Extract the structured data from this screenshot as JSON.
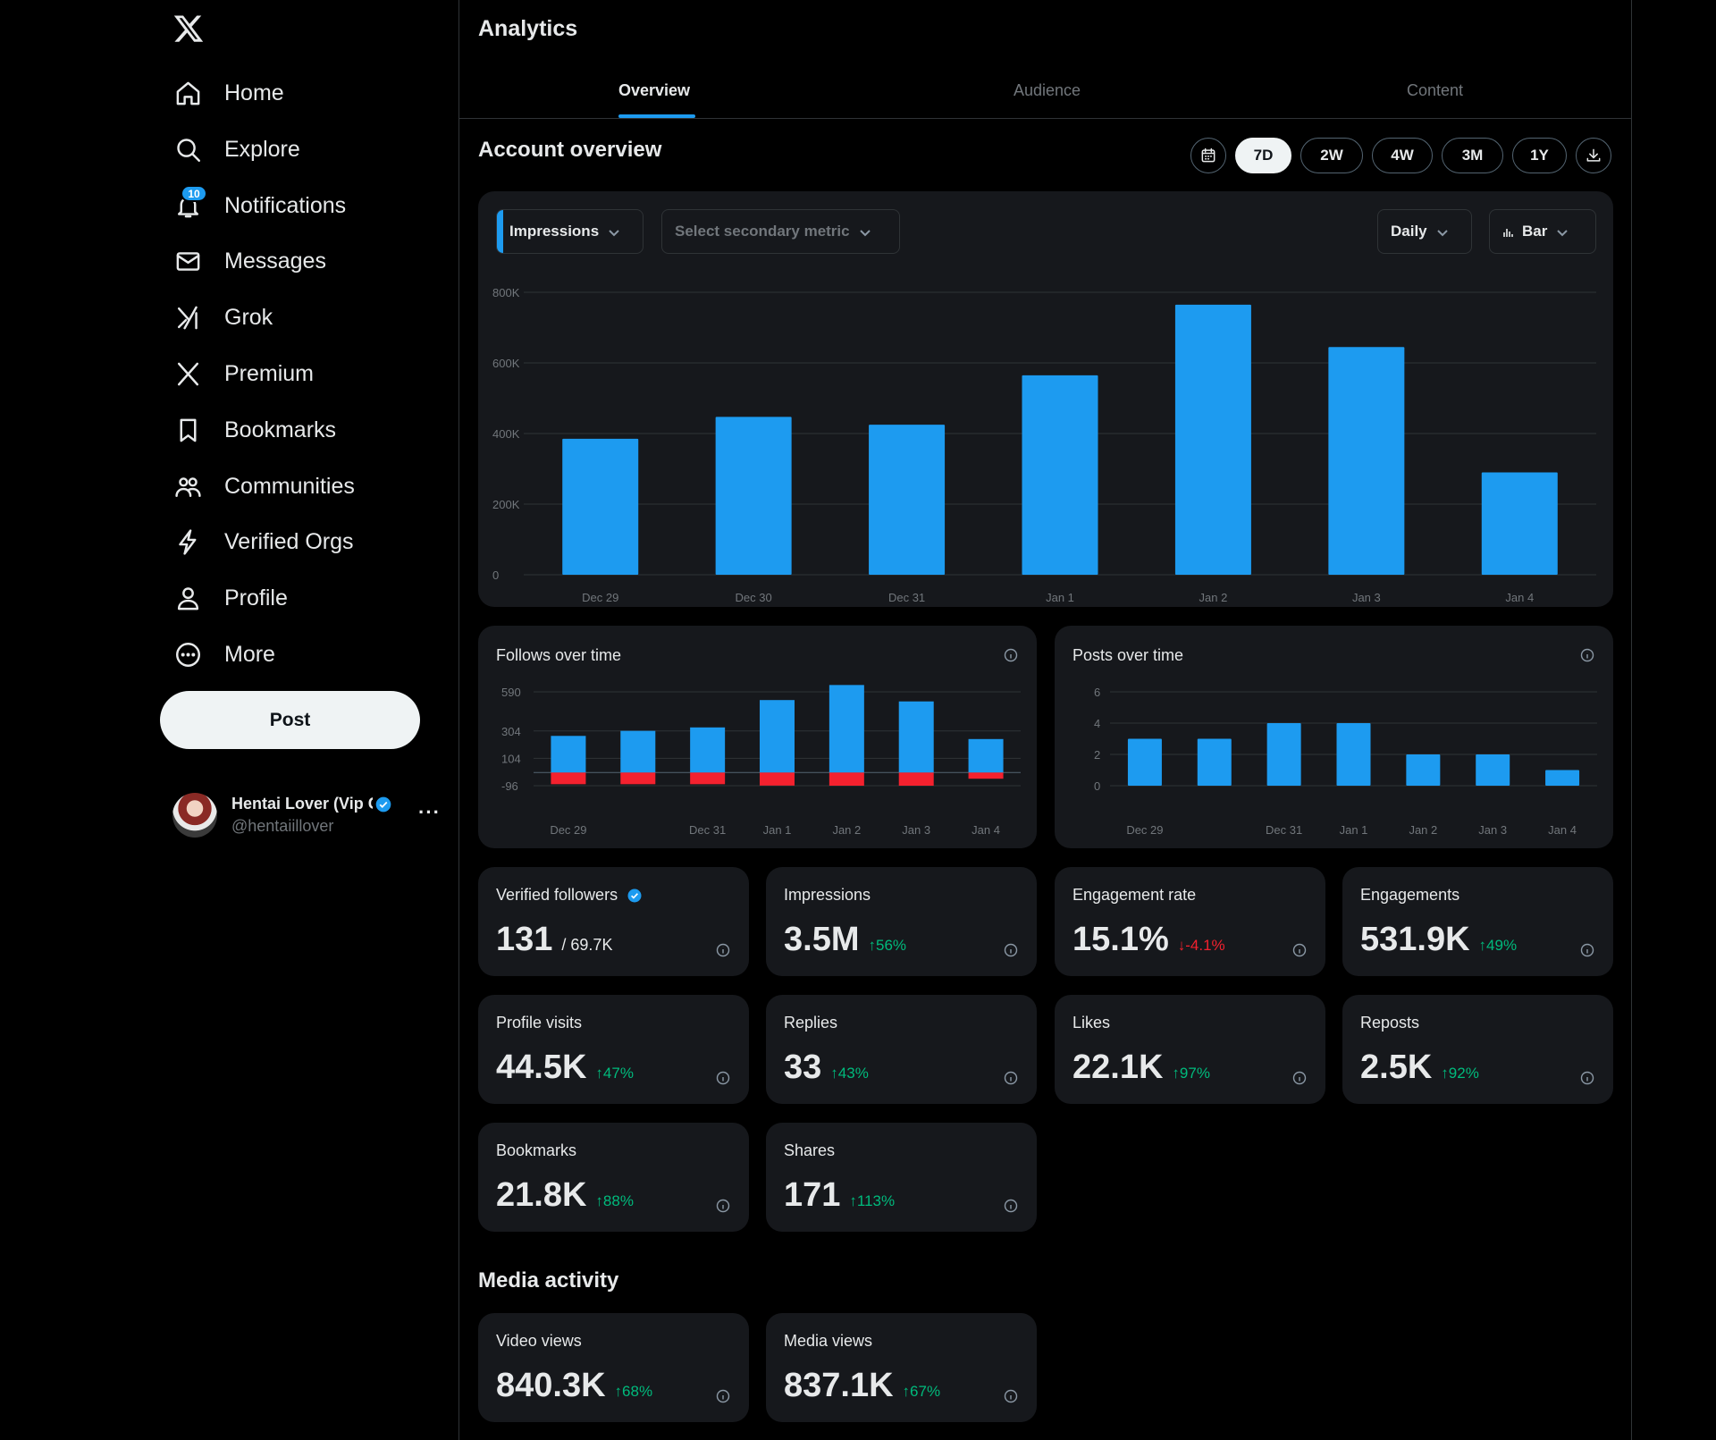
{
  "sidebar": {
    "nav": [
      {
        "label": "Home",
        "icon": "home-icon"
      },
      {
        "label": "Explore",
        "icon": "search-icon"
      },
      {
        "label": "Notifications",
        "icon": "bell-icon"
      },
      {
        "label": "Messages",
        "icon": "envelope-icon"
      },
      {
        "label": "Grok",
        "icon": "grok-icon"
      },
      {
        "label": "Premium",
        "icon": "x-icon"
      },
      {
        "label": "Bookmarks",
        "icon": "bookmark-icon"
      },
      {
        "label": "Communities",
        "icon": "people-icon"
      },
      {
        "label": "Verified Orgs",
        "icon": "lightning-icon"
      },
      {
        "label": "Profile",
        "icon": "person-icon"
      },
      {
        "label": "More",
        "icon": "more-circle-icon"
      }
    ],
    "notification_count": "10",
    "post_label": "Post",
    "account": {
      "name": "Hentai Lover (Vip Content)",
      "handle": "@hentaiillover",
      "more": "···"
    }
  },
  "main": {
    "title": "Analytics",
    "tabs": [
      {
        "label": "Overview",
        "active": true
      },
      {
        "label": "Audience",
        "active": false
      },
      {
        "label": "Content",
        "active": false
      }
    ],
    "account_overview_title": "Account overview",
    "ranges": [
      "7D",
      "2W",
      "4W",
      "3M",
      "1Y"
    ],
    "active_range": "7D",
    "primary_metric": "Impressions",
    "secondary_metric_placeholder": "Select secondary metric",
    "interval": "Daily",
    "chart_type_label": "Bar",
    "follows_title": "Follows over time",
    "posts_title": "Posts over time",
    "metrics": [
      {
        "label": "Verified followers",
        "value": "131",
        "sub": "/ 69.7K",
        "change": "",
        "dir": "",
        "verified": true
      },
      {
        "label": "Impressions",
        "value": "3.5M",
        "change": "56%",
        "dir": "up"
      },
      {
        "label": "Engagement rate",
        "value": "15.1%",
        "change": "-4.1%",
        "dir": "down"
      },
      {
        "label": "Engagements",
        "value": "531.9K",
        "change": "49%",
        "dir": "up"
      },
      {
        "label": "Profile visits",
        "value": "44.5K",
        "change": "47%",
        "dir": "up"
      },
      {
        "label": "Replies",
        "value": "33",
        "change": "43%",
        "dir": "up"
      },
      {
        "label": "Likes",
        "value": "22.1K",
        "change": "97%",
        "dir": "up"
      },
      {
        "label": "Reposts",
        "value": "2.5K",
        "change": "92%",
        "dir": "up"
      },
      {
        "label": "Bookmarks",
        "value": "21.8K",
        "change": "88%",
        "dir": "up"
      },
      {
        "label": "Shares",
        "value": "171",
        "change": "113%",
        "dir": "up"
      }
    ],
    "media_title": "Media activity",
    "media_metrics": [
      {
        "label": "Video views",
        "value": "840.3K",
        "change": "68%",
        "dir": "up"
      },
      {
        "label": "Media views",
        "value": "837.1K",
        "change": "67%",
        "dir": "up"
      }
    ],
    "colors": {
      "accent": "#1d9bf0",
      "negative": "#f4212e",
      "positive": "#00ba7c",
      "card": "#16181c"
    }
  },
  "chart_data": [
    {
      "type": "bar",
      "categories": [
        "Dec 29",
        "Dec 30",
        "Dec 31",
        "Jan 1",
        "Jan 2",
        "Jan 3",
        "Jan 4"
      ],
      "values": [
        385000,
        447000,
        425000,
        565000,
        765000,
        645000,
        290000
      ],
      "yticks": [
        "0",
        "200K",
        "400K",
        "600K",
        "800K"
      ],
      "ylim": [
        0,
        800000
      ],
      "grid": true
    },
    {
      "type": "bar",
      "title": "Follows over time",
      "categories": [
        "Dec 29",
        "Dec 30",
        "Dec 31",
        "Jan 1",
        "Jan 2",
        "Jan 3",
        "Jan 4"
      ],
      "xtick_labels": [
        "Dec 29",
        "",
        "Dec 31",
        "Jan 1",
        "Jan 2",
        "Jan 3",
        "Jan 4"
      ],
      "series": [
        {
          "values": [
            268,
            305,
            330,
            530,
            640,
            520,
            245
          ],
          "color": "#1d9bf0"
        },
        {
          "values": [
            -85,
            -85,
            -85,
            -95,
            -96,
            -96,
            -45
          ],
          "color": "#f4212e"
        }
      ],
      "yticks": [
        -96,
        104,
        304,
        590
      ],
      "ylim": [
        -96,
        640
      ],
      "grid": true
    },
    {
      "type": "bar",
      "title": "Posts over time",
      "categories": [
        "Dec 29",
        "Dec 30",
        "Dec 31",
        "Jan 1",
        "Jan 2",
        "Jan 3",
        "Jan 4"
      ],
      "xtick_labels": [
        "Dec 29",
        "",
        "Dec 31",
        "Jan 1",
        "Jan 2",
        "Jan 3",
        "Jan 4"
      ],
      "values": [
        3,
        3,
        4,
        4,
        2,
        2,
        1
      ],
      "yticks": [
        0,
        2,
        4,
        6
      ],
      "ylim": [
        0,
        6
      ],
      "grid": true
    }
  ]
}
